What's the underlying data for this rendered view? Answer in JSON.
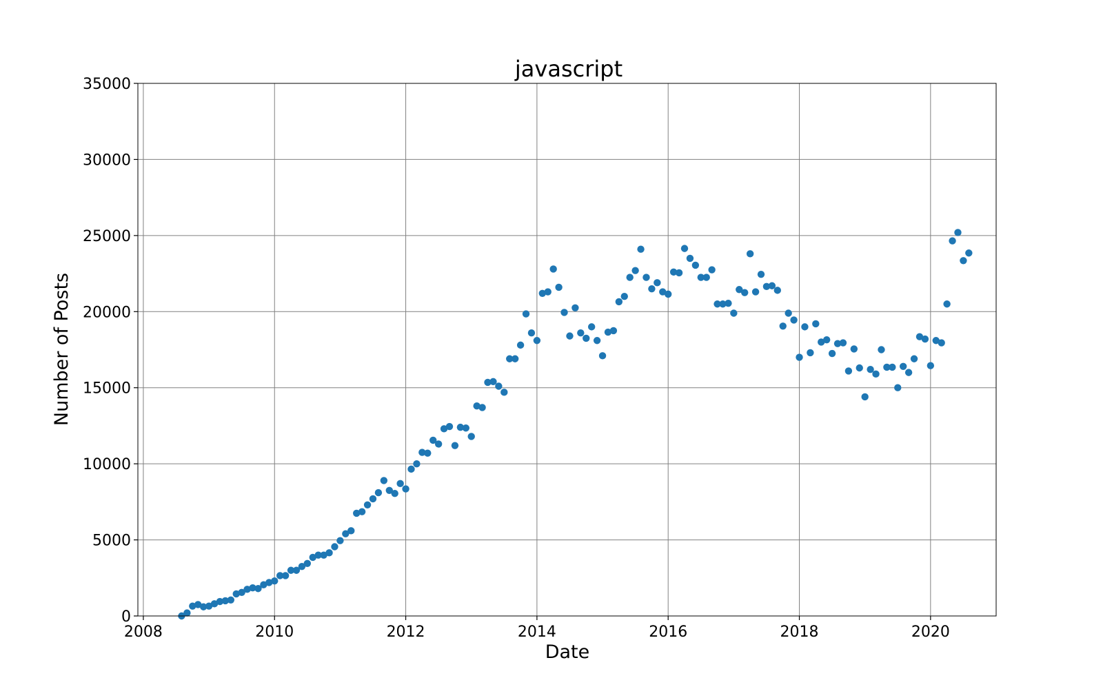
{
  "chart_data": {
    "type": "scatter",
    "title": "javascript",
    "xlabel": "Date",
    "ylabel": "Number of Posts",
    "xlim": [
      "2007-12",
      "2021-01"
    ],
    "ylim": [
      0,
      35000
    ],
    "xticks": [
      {
        "label": "2008",
        "x": "2008-01"
      },
      {
        "label": "2010",
        "x": "2010-01"
      },
      {
        "label": "2012",
        "x": "2012-01"
      },
      {
        "label": "2014",
        "x": "2014-01"
      },
      {
        "label": "2016",
        "x": "2016-01"
      },
      {
        "label": "2018",
        "x": "2018-01"
      },
      {
        "label": "2020",
        "x": "2020-01"
      }
    ],
    "yticks": [
      0,
      5000,
      10000,
      15000,
      20000,
      25000,
      30000,
      35000
    ],
    "grid": true,
    "marker_color": "#1f77b4",
    "series": [
      {
        "points": [
          [
            "2008-08",
            0
          ],
          [
            "2008-09",
            200
          ],
          [
            "2008-10",
            650
          ],
          [
            "2008-11",
            750
          ],
          [
            "2008-12",
            600
          ],
          [
            "2009-01",
            650
          ],
          [
            "2009-02",
            800
          ],
          [
            "2009-03",
            950
          ],
          [
            "2009-04",
            1000
          ],
          [
            "2009-05",
            1050
          ],
          [
            "2009-06",
            1450
          ],
          [
            "2009-07",
            1550
          ],
          [
            "2009-08",
            1750
          ],
          [
            "2009-09",
            1850
          ],
          [
            "2009-10",
            1800
          ],
          [
            "2009-11",
            2050
          ],
          [
            "2009-12",
            2200
          ],
          [
            "2010-01",
            2300
          ],
          [
            "2010-02",
            2650
          ],
          [
            "2010-03",
            2650
          ],
          [
            "2010-04",
            3000
          ],
          [
            "2010-05",
            3000
          ],
          [
            "2010-06",
            3250
          ],
          [
            "2010-07",
            3450
          ],
          [
            "2010-08",
            3850
          ],
          [
            "2010-09",
            4000
          ],
          [
            "2010-10",
            4000
          ],
          [
            "2010-11",
            4150
          ],
          [
            "2010-12",
            4550
          ],
          [
            "2011-01",
            4950
          ],
          [
            "2011-02",
            5400
          ],
          [
            "2011-03",
            5600
          ],
          [
            "2011-04",
            6750
          ],
          [
            "2011-05",
            6850
          ],
          [
            "2011-06",
            7300
          ],
          [
            "2011-07",
            7700
          ],
          [
            "2011-08",
            8100
          ],
          [
            "2011-09",
            8900
          ],
          [
            "2011-10",
            8250
          ],
          [
            "2011-11",
            8050
          ],
          [
            "2011-12",
            8700
          ],
          [
            "2012-01",
            8350
          ],
          [
            "2012-02",
            9650
          ],
          [
            "2012-03",
            10000
          ],
          [
            "2012-04",
            10750
          ],
          [
            "2012-05",
            10700
          ],
          [
            "2012-06",
            11550
          ],
          [
            "2012-07",
            11300
          ],
          [
            "2012-08",
            12300
          ],
          [
            "2012-09",
            12450
          ],
          [
            "2012-10",
            11200
          ],
          [
            "2012-11",
            12400
          ],
          [
            "2012-12",
            12350
          ],
          [
            "2013-01",
            11800
          ],
          [
            "2013-02",
            13800
          ],
          [
            "2013-03",
            13700
          ],
          [
            "2013-04",
            15350
          ],
          [
            "2013-05",
            15400
          ],
          [
            "2013-06",
            15100
          ],
          [
            "2013-07",
            14700
          ],
          [
            "2013-08",
            16900
          ],
          [
            "2013-09",
            16900
          ],
          [
            "2013-10",
            17800
          ],
          [
            "2013-11",
            19850
          ],
          [
            "2013-12",
            18600
          ],
          [
            "2014-01",
            18100
          ],
          [
            "2014-02",
            21200
          ],
          [
            "2014-03",
            21300
          ],
          [
            "2014-04",
            22800
          ],
          [
            "2014-05",
            21600
          ],
          [
            "2014-06",
            19950
          ],
          [
            "2014-07",
            18400
          ],
          [
            "2014-08",
            20250
          ],
          [
            "2014-09",
            18600
          ],
          [
            "2014-10",
            18250
          ],
          [
            "2014-11",
            19000
          ],
          [
            "2014-12",
            18100
          ],
          [
            "2015-01",
            17100
          ],
          [
            "2015-02",
            18650
          ],
          [
            "2015-03",
            18750
          ],
          [
            "2015-04",
            20650
          ],
          [
            "2015-05",
            21000
          ],
          [
            "2015-06",
            22250
          ],
          [
            "2015-07",
            22700
          ],
          [
            "2015-08",
            24100
          ],
          [
            "2015-09",
            22250
          ],
          [
            "2015-10",
            21500
          ],
          [
            "2015-11",
            21900
          ],
          [
            "2015-12",
            21300
          ],
          [
            "2016-01",
            21150
          ],
          [
            "2016-02",
            22600
          ],
          [
            "2016-03",
            22550
          ],
          [
            "2016-04",
            24150
          ],
          [
            "2016-05",
            23500
          ],
          [
            "2016-06",
            23050
          ],
          [
            "2016-07",
            22250
          ],
          [
            "2016-08",
            22250
          ],
          [
            "2016-09",
            22750
          ],
          [
            "2016-10",
            20500
          ],
          [
            "2016-11",
            20500
          ],
          [
            "2016-12",
            20550
          ],
          [
            "2017-01",
            19900
          ],
          [
            "2017-02",
            21450
          ],
          [
            "2017-03",
            21250
          ],
          [
            "2017-04",
            23800
          ],
          [
            "2017-05",
            21300
          ],
          [
            "2017-06",
            22450
          ],
          [
            "2017-07",
            21650
          ],
          [
            "2017-08",
            21700
          ],
          [
            "2017-09",
            21400
          ],
          [
            "2017-10",
            19050
          ],
          [
            "2017-11",
            19900
          ],
          [
            "2017-12",
            19450
          ],
          [
            "2018-01",
            17000
          ],
          [
            "2018-02",
            19000
          ],
          [
            "2018-03",
            17300
          ],
          [
            "2018-04",
            19200
          ],
          [
            "2018-05",
            18000
          ],
          [
            "2018-06",
            18150
          ],
          [
            "2018-07",
            17250
          ],
          [
            "2018-08",
            17900
          ],
          [
            "2018-09",
            17950
          ],
          [
            "2018-10",
            16100
          ],
          [
            "2018-11",
            17550
          ],
          [
            "2018-12",
            16300
          ],
          [
            "2019-01",
            14400
          ],
          [
            "2019-02",
            16200
          ],
          [
            "2019-03",
            15900
          ],
          [
            "2019-04",
            17500
          ],
          [
            "2019-05",
            16350
          ],
          [
            "2019-06",
            16350
          ],
          [
            "2019-07",
            15000
          ],
          [
            "2019-08",
            16400
          ],
          [
            "2019-09",
            16000
          ],
          [
            "2019-10",
            16900
          ],
          [
            "2019-11",
            18350
          ],
          [
            "2019-12",
            18200
          ],
          [
            "2020-01",
            16450
          ],
          [
            "2020-02",
            18100
          ],
          [
            "2020-03",
            17950
          ],
          [
            "2020-04",
            20500
          ],
          [
            "2020-05",
            24650
          ],
          [
            "2020-06",
            25200
          ],
          [
            "2020-07",
            23350
          ],
          [
            "2020-08",
            23850
          ]
        ]
      }
    ]
  }
}
